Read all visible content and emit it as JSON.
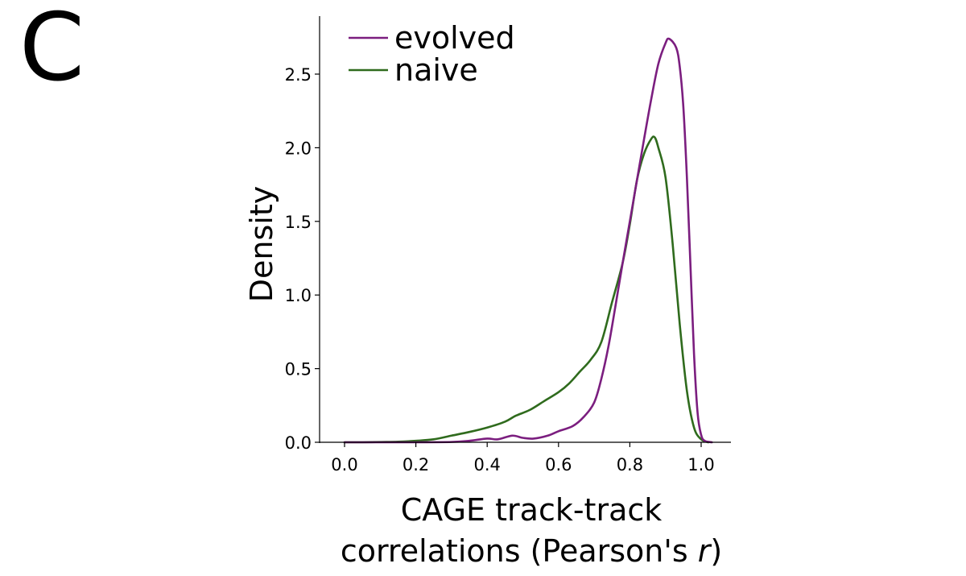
{
  "panel_label": "C",
  "chart_data": {
    "type": "line",
    "title": "",
    "xlabel_line1": "CAGE track-track",
    "xlabel_line2_prefix": "correlations (Pearson's ",
    "xlabel_line2_italic": "r",
    "xlabel_line2_suffix": ")",
    "ylabel": "Density",
    "xlim": [
      -0.07,
      1.08
    ],
    "ylim": [
      0.0,
      2.9
    ],
    "xticks": [
      0.0,
      0.2,
      0.4,
      0.6,
      0.8,
      1.0
    ],
    "xtick_labels": [
      "0.0",
      "0.2",
      "0.4",
      "0.6",
      "0.8",
      "1.0"
    ],
    "yticks": [
      0.0,
      0.5,
      1.0,
      1.5,
      2.0,
      2.5
    ],
    "ytick_labels": [
      "0.0",
      "0.5",
      "1.0",
      "1.5",
      "2.0",
      "2.5"
    ],
    "legend_position": "top-left",
    "series": [
      {
        "name": "evolved",
        "color": "#7b1e7f",
        "points": [
          [
            0.0,
            0.0
          ],
          [
            0.2,
            0.0
          ],
          [
            0.3,
            0.002
          ],
          [
            0.35,
            0.01
          ],
          [
            0.4,
            0.025
          ],
          [
            0.43,
            0.02
          ],
          [
            0.47,
            0.045
          ],
          [
            0.5,
            0.03
          ],
          [
            0.53,
            0.025
          ],
          [
            0.57,
            0.045
          ],
          [
            0.6,
            0.075
          ],
          [
            0.64,
            0.11
          ],
          [
            0.67,
            0.17
          ],
          [
            0.7,
            0.27
          ],
          [
            0.72,
            0.43
          ],
          [
            0.74,
            0.65
          ],
          [
            0.76,
            0.93
          ],
          [
            0.78,
            1.22
          ],
          [
            0.8,
            1.5
          ],
          [
            0.82,
            1.78
          ],
          [
            0.84,
            2.06
          ],
          [
            0.86,
            2.33
          ],
          [
            0.88,
            2.57
          ],
          [
            0.9,
            2.71
          ],
          [
            0.91,
            2.74
          ],
          [
            0.93,
            2.68
          ],
          [
            0.94,
            2.55
          ],
          [
            0.95,
            2.28
          ],
          [
            0.96,
            1.8
          ],
          [
            0.97,
            1.2
          ],
          [
            0.98,
            0.6
          ],
          [
            0.99,
            0.2
          ],
          [
            1.0,
            0.05
          ],
          [
            1.01,
            0.01
          ],
          [
            1.03,
            0.0
          ]
        ]
      },
      {
        "name": "naive",
        "color": "#2f6b1d",
        "points": [
          [
            0.0,
            0.0
          ],
          [
            0.05,
            0.0
          ],
          [
            0.1,
            0.002
          ],
          [
            0.15,
            0.004
          ],
          [
            0.2,
            0.01
          ],
          [
            0.25,
            0.02
          ],
          [
            0.3,
            0.045
          ],
          [
            0.35,
            0.07
          ],
          [
            0.4,
            0.1
          ],
          [
            0.45,
            0.14
          ],
          [
            0.48,
            0.18
          ],
          [
            0.52,
            0.22
          ],
          [
            0.56,
            0.28
          ],
          [
            0.6,
            0.34
          ],
          [
            0.63,
            0.4
          ],
          [
            0.66,
            0.48
          ],
          [
            0.69,
            0.56
          ],
          [
            0.72,
            0.68
          ],
          [
            0.75,
            0.95
          ],
          [
            0.78,
            1.22
          ],
          [
            0.8,
            1.48
          ],
          [
            0.82,
            1.78
          ],
          [
            0.84,
            1.96
          ],
          [
            0.86,
            2.06
          ],
          [
            0.87,
            2.07
          ],
          [
            0.88,
            2.0
          ],
          [
            0.9,
            1.8
          ],
          [
            0.92,
            1.35
          ],
          [
            0.94,
            0.8
          ],
          [
            0.96,
            0.35
          ],
          [
            0.98,
            0.1
          ],
          [
            1.0,
            0.02
          ],
          [
            1.02,
            0.0
          ]
        ]
      }
    ]
  }
}
